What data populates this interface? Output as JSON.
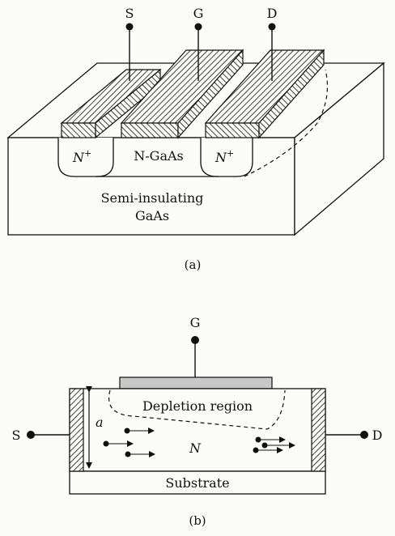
{
  "figure_a": {
    "terminals": {
      "source": "S",
      "gate": "G",
      "drain": "D"
    },
    "regions": {
      "n_plus_left": "N",
      "n_plus_right": "N",
      "superscript": "+",
      "channel": "N-GaAs",
      "substrate_line1": "Semi-insulating",
      "substrate_line2": "GaAs"
    },
    "caption": "(a)"
  },
  "figure_b": {
    "terminals": {
      "gate": "G",
      "source": "S",
      "drain": "D"
    },
    "depletion_label": "Depletion region",
    "thickness_label": "a",
    "channel_label": "N",
    "substrate_label": "Substrate",
    "caption": "(b)"
  },
  "colors": {
    "ink": "#111111",
    "paper": "#fbfbf8",
    "gate_fill": "#c8c8c8"
  }
}
